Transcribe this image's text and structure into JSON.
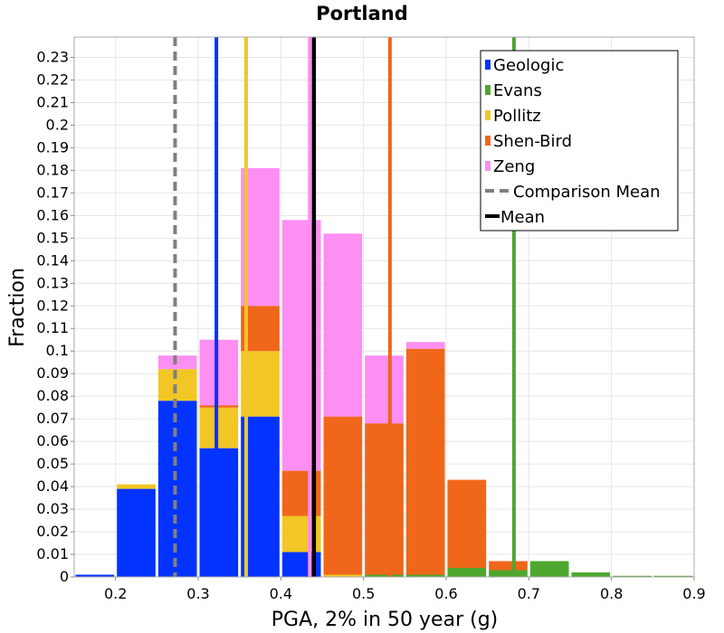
{
  "chart_data": {
    "type": "bar",
    "stacked": true,
    "title": "Portland",
    "xlabel": "PGA, 2% in 50 year (g)",
    "ylabel": "Fraction",
    "xlim": [
      0.15,
      0.9
    ],
    "ylim": [
      0,
      0.239
    ],
    "x_ticks": [
      "0.2",
      "0.3",
      "0.4",
      "0.5",
      "0.6",
      "0.7",
      "0.8",
      "0.9"
    ],
    "y_ticks": [
      "0",
      "0.01",
      "0.02",
      "0.03",
      "0.04",
      "0.05",
      "0.06",
      "0.07",
      "0.08",
      "0.09",
      "0.1",
      "0.11",
      "0.12",
      "0.13",
      "0.14",
      "0.15",
      "0.16",
      "0.17",
      "0.18",
      "0.19",
      "0.2",
      "0.21",
      "0.22",
      "0.23"
    ],
    "grid": true,
    "legend_position": "top-right",
    "bin_width": 0.05,
    "x": [
      0.175,
      0.225,
      0.275,
      0.325,
      0.375,
      0.425,
      0.475,
      0.525,
      0.575,
      0.625,
      0.675,
      0.725,
      0.775,
      0.825,
      0.875
    ],
    "series": [
      {
        "name": "Geologic",
        "color": "#0433ff",
        "values": [
          0.001,
          0.039,
          0.078,
          0.057,
          0.071,
          0.011,
          0,
          0,
          0,
          0,
          0,
          0,
          0,
          0,
          0
        ]
      },
      {
        "name": "Evans",
        "color": "#4ea72e",
        "values": [
          0,
          0,
          0,
          0,
          0,
          0,
          0,
          0.001,
          0.001,
          0.004,
          0.003,
          0.007,
          0.002,
          0.0005,
          0.0005
        ]
      },
      {
        "name": "Pollitz",
        "color": "#f2c624",
        "values": [
          0,
          0.002,
          0.014,
          0.018,
          0.029,
          0.016,
          0.001,
          0,
          0,
          0,
          0,
          0,
          0,
          0,
          0
        ]
      },
      {
        "name": "Shen-Bird",
        "color": "#f0661a",
        "values": [
          0,
          0,
          0,
          0.001,
          0.02,
          0.02,
          0.07,
          0.067,
          0.1,
          0.039,
          0.004,
          0,
          0,
          0,
          0
        ]
      },
      {
        "name": "Zeng",
        "color": "#fc8ff1",
        "values": [
          0,
          0,
          0.006,
          0.029,
          0.061,
          0.111,
          0.081,
          0.03,
          0.003,
          0,
          0,
          0,
          0,
          0,
          0
        ]
      }
    ],
    "mean_lines": [
      {
        "series": "Geologic",
        "x": 0.322,
        "color": "#0433ff"
      },
      {
        "series": "Pollitz",
        "x": 0.358,
        "color": "#f2c624"
      },
      {
        "series": "Zeng",
        "x": 0.435,
        "color": "#fc8ff1"
      },
      {
        "series": "Shen-Bird",
        "x": 0.532,
        "color": "#f0661a"
      },
      {
        "series": "Evans",
        "x": 0.682,
        "color": "#4ea72e"
      }
    ],
    "comparison_mean": {
      "name": "Comparison Mean",
      "x": 0.272,
      "color": "#808080"
    },
    "mean": {
      "name": "Mean",
      "x": 0.44,
      "color": "#000000"
    }
  }
}
